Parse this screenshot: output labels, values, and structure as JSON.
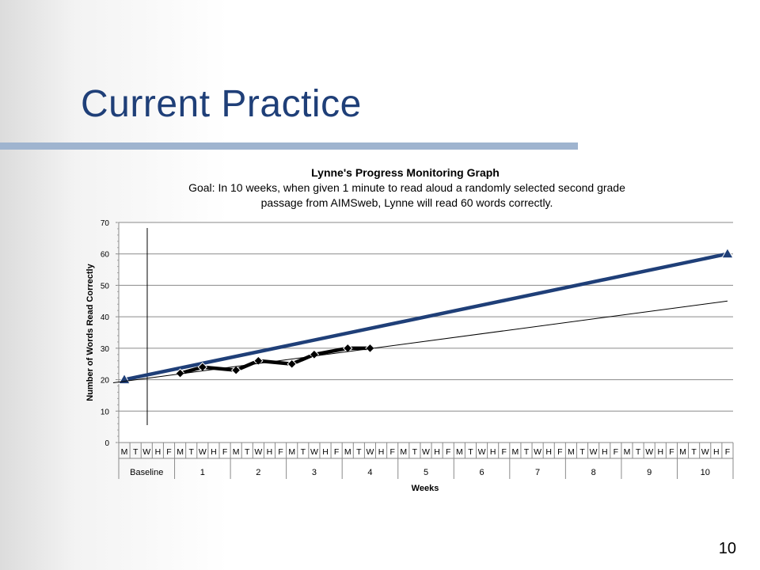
{
  "slide": {
    "title": "Current Practice",
    "page_number": "10"
  },
  "colors": {
    "title": "#1f3f78",
    "goal_line": "#1f3f78",
    "data_line": "#000000",
    "rule": "#9fb4cf"
  },
  "chart_data": {
    "type": "line",
    "title": "Lynne's Progress Monitoring Graph",
    "subtitle_lines": [
      "Goal: In 10 weeks, when given 1 minute to read aloud a randomly selected second grade",
      "passage from AIMSweb, Lynne will read 60 words correctly."
    ],
    "xlabel": "Weeks",
    "ylabel": "Number of Words Read Correctly",
    "ylim": [
      0,
      70
    ],
    "yticks": [
      0,
      10,
      20,
      30,
      40,
      50,
      60,
      70
    ],
    "grid": true,
    "day_labels": [
      "M",
      "T",
      "W",
      "H",
      "F"
    ],
    "week_labels": [
      "Baseline",
      "1",
      "2",
      "3",
      "4",
      "5",
      "6",
      "7",
      "8",
      "9",
      "10"
    ],
    "baseline_divider_day": 2,
    "series": [
      {
        "kind": "goal",
        "marker": "triangle",
        "x": [
          0,
          54
        ],
        "y": [
          20,
          60
        ]
      },
      {
        "kind": "progress",
        "marker": "diamond",
        "x": [
          5,
          7,
          10,
          12,
          15,
          17,
          20,
          22
        ],
        "y": [
          22,
          24,
          23,
          26,
          25,
          28,
          30,
          30
        ]
      },
      {
        "kind": "trend",
        "marker": "none",
        "x": [
          -1,
          54
        ],
        "y": [
          19,
          45
        ]
      }
    ]
  }
}
